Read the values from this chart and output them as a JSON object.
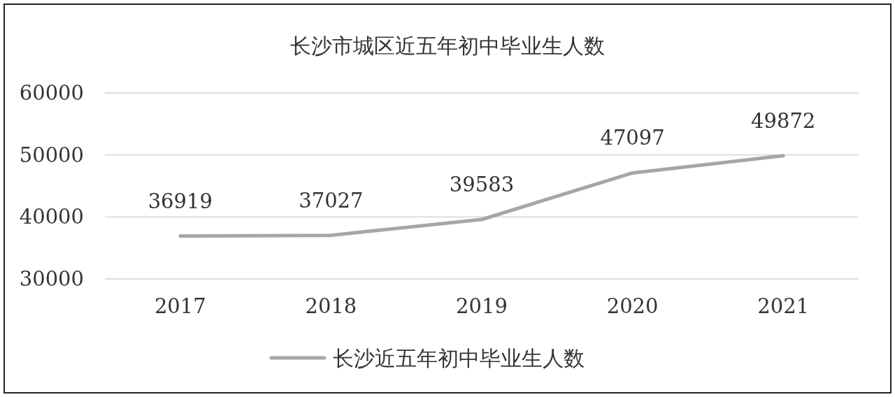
{
  "chart_data": {
    "type": "line",
    "title": "长沙市城区近五年初中毕业生人数",
    "categories": [
      "2017",
      "2018",
      "2019",
      "2020",
      "2021"
    ],
    "series": [
      {
        "name": "长沙近五年初中毕业生人数",
        "color": "#a6a6a6",
        "values": [
          36919,
          37027,
          39583,
          47097,
          49872
        ]
      }
    ],
    "ylim": [
      30000,
      60000
    ],
    "yticks": [
      30000,
      40000,
      50000,
      60000
    ],
    "grid": "y",
    "legend": "bottom",
    "data_labels": true
  }
}
